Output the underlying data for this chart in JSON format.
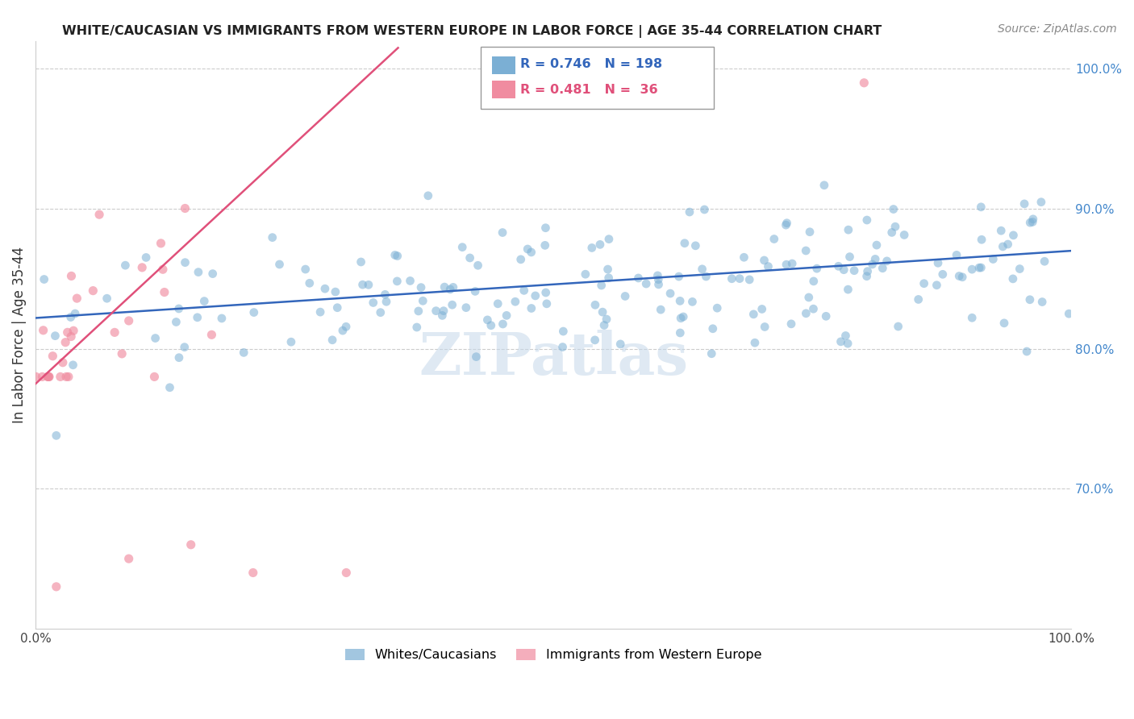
{
  "title": "WHITE/CAUCASIAN VS IMMIGRANTS FROM WESTERN EUROPE IN LABOR FORCE | AGE 35-44 CORRELATION CHART",
  "source": "Source: ZipAtlas.com",
  "ylabel": "In Labor Force | Age 35-44",
  "watermark": "ZIPatlas",
  "xlim": [
    0.0,
    1.0
  ],
  "ylim": [
    0.6,
    1.02
  ],
  "ytick_vals": [
    0.7,
    0.8,
    0.9,
    1.0
  ],
  "ytick_labels": [
    "70.0%",
    "80.0%",
    "90.0%",
    "100.0%"
  ],
  "blue_R": 0.746,
  "blue_N": 198,
  "pink_R": 0.481,
  "pink_N": 36,
  "blue_color": "#7BAFD4",
  "pink_color": "#F08CA0",
  "blue_line_color": "#3366BB",
  "pink_line_color": "#E0507A",
  "legend_label_blue": "Whites/Caucasians",
  "legend_label_pink": "Immigrants from Western Europe",
  "blue_line_x0": 0.0,
  "blue_line_y0": 0.822,
  "blue_line_x1": 1.0,
  "blue_line_y1": 0.87,
  "pink_line_x0": 0.0,
  "pink_line_y0": 0.775,
  "pink_line_x1": 0.35,
  "pink_line_y1": 1.015
}
